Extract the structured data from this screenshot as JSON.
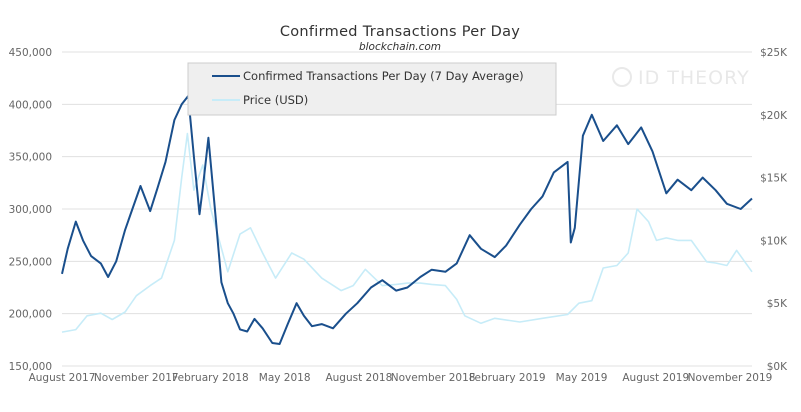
{
  "chart_data": {
    "type": "line",
    "title": "Confirmed Transactions Per Day",
    "subtitle": "blockchain.com",
    "watermark": "ID THEORY",
    "grid": true,
    "legend_position": "top-left",
    "colors": {
      "transactions": "#1a4f8c",
      "price": "#c7ecf8",
      "grid": "#e0e0e0",
      "axis_text": "#666666",
      "title": "#333333"
    },
    "x_axis": {
      "ticks": [
        "August 2017",
        "November 2017",
        "February 2018",
        "May 2018",
        "August 2018",
        "November 2018",
        "February 2019",
        "May 2019",
        "August 2019",
        "November 2019"
      ],
      "range": [
        "2017-07-15",
        "2019-11-15"
      ]
    },
    "y_axis_left": {
      "range": [
        150000,
        450000
      ],
      "ticks": [
        150000,
        200000,
        250000,
        300000,
        350000,
        400000,
        450000
      ],
      "tick_labels": [
        "150,000",
        "200,000",
        "250,000",
        "300,000",
        "350,000",
        "400,000",
        "450,000"
      ]
    },
    "y_axis_right": {
      "range": [
        0,
        25000
      ],
      "ticks": [
        0,
        5000,
        10000,
        15000,
        20000,
        25000
      ],
      "tick_labels": [
        "$0K",
        "$5K",
        "$10K",
        "$15K",
        "$20K",
        "$25K"
      ]
    },
    "series": [
      {
        "name": "Confirmed Transactions Per Day (7 Day Average)",
        "axis": "left",
        "x": [
          "2017-07-15",
          "2017-07-22",
          "2017-08-01",
          "2017-08-10",
          "2017-08-20",
          "2017-09-01",
          "2017-09-10",
          "2017-09-20",
          "2017-10-01",
          "2017-10-10",
          "2017-10-20",
          "2017-11-01",
          "2017-11-10",
          "2017-11-20",
          "2017-12-01",
          "2017-12-10",
          "2017-12-18",
          "2017-12-25",
          "2018-01-01",
          "2018-01-05",
          "2018-01-12",
          "2018-01-20",
          "2018-01-28",
          "2018-02-05",
          "2018-02-12",
          "2018-02-20",
          "2018-03-01",
          "2018-03-10",
          "2018-03-20",
          "2018-04-01",
          "2018-04-10",
          "2018-04-20",
          "2018-05-01",
          "2018-05-10",
          "2018-05-20",
          "2018-06-01",
          "2018-06-15",
          "2018-07-01",
          "2018-07-15",
          "2018-08-01",
          "2018-08-15",
          "2018-09-01",
          "2018-09-15",
          "2018-10-01",
          "2018-10-15",
          "2018-11-01",
          "2018-11-15",
          "2018-12-01",
          "2018-12-15",
          "2019-01-01",
          "2019-01-15",
          "2019-02-01",
          "2019-02-15",
          "2019-03-01",
          "2019-03-15",
          "2019-04-01",
          "2019-04-05",
          "2019-04-10",
          "2019-04-20",
          "2019-05-01",
          "2019-05-15",
          "2019-06-01",
          "2019-06-15",
          "2019-07-01",
          "2019-07-15",
          "2019-08-01",
          "2019-08-15",
          "2019-09-01",
          "2019-09-15",
          "2019-10-01",
          "2019-10-15",
          "2019-11-01",
          "2019-11-15"
        ],
        "values": [
          238000,
          262000,
          288000,
          270000,
          255000,
          248000,
          235000,
          250000,
          280000,
          300000,
          322000,
          298000,
          320000,
          345000,
          385000,
          400000,
          408000,
          350000,
          295000,
          320000,
          368000,
          300000,
          230000,
          210000,
          200000,
          185000,
          183000,
          195000,
          186000,
          172000,
          171000,
          190000,
          210000,
          198000,
          188000,
          190000,
          186000,
          200000,
          210000,
          225000,
          232000,
          222000,
          225000,
          235000,
          242000,
          240000,
          248000,
          275000,
          262000,
          254000,
          265000,
          285000,
          300000,
          312000,
          335000,
          345000,
          268000,
          282000,
          370000,
          390000,
          365000,
          380000,
          362000,
          378000,
          355000,
          315000,
          328000,
          318000,
          330000,
          318000,
          305000,
          300000,
          310000
        ]
      },
      {
        "name": "Price (USD)",
        "axis": "right",
        "x": [
          "2017-07-15",
          "2017-08-01",
          "2017-08-15",
          "2017-09-01",
          "2017-09-15",
          "2017-10-01",
          "2017-10-15",
          "2017-11-01",
          "2017-11-15",
          "2017-12-01",
          "2017-12-10",
          "2017-12-17",
          "2017-12-25",
          "2018-01-05",
          "2018-01-15",
          "2018-02-05",
          "2018-02-20",
          "2018-03-05",
          "2018-03-20",
          "2018-04-05",
          "2018-04-25",
          "2018-05-10",
          "2018-06-01",
          "2018-06-25",
          "2018-07-10",
          "2018-07-25",
          "2018-08-15",
          "2018-09-01",
          "2018-09-15",
          "2018-10-01",
          "2018-10-15",
          "2018-11-01",
          "2018-11-15",
          "2018-11-25",
          "2018-12-15",
          "2019-01-01",
          "2019-02-01",
          "2019-03-01",
          "2019-04-01",
          "2019-04-15",
          "2019-05-01",
          "2019-05-15",
          "2019-06-01",
          "2019-06-15",
          "2019-06-26",
          "2019-07-10",
          "2019-07-20",
          "2019-08-01",
          "2019-08-15",
          "2019-09-01",
          "2019-09-20",
          "2019-10-01",
          "2019-10-15",
          "2019-10-27",
          "2019-11-15"
        ],
        "values": [
          2700,
          2900,
          4000,
          4200,
          3700,
          4300,
          5600,
          6400,
          7000,
          10000,
          15000,
          18500,
          14000,
          16000,
          12500,
          7500,
          10500,
          11000,
          9000,
          7000,
          9000,
          8500,
          7000,
          6000,
          6400,
          7700,
          6400,
          6500,
          6600,
          6600,
          6500,
          6400,
          5300,
          4000,
          3400,
          3800,
          3500,
          3800,
          4100,
          5000,
          5200,
          7800,
          8000,
          9000,
          12500,
          11500,
          10000,
          10200,
          10000,
          10000,
          8300,
          8200,
          8000,
          9200,
          7500
        ]
      }
    ]
  }
}
